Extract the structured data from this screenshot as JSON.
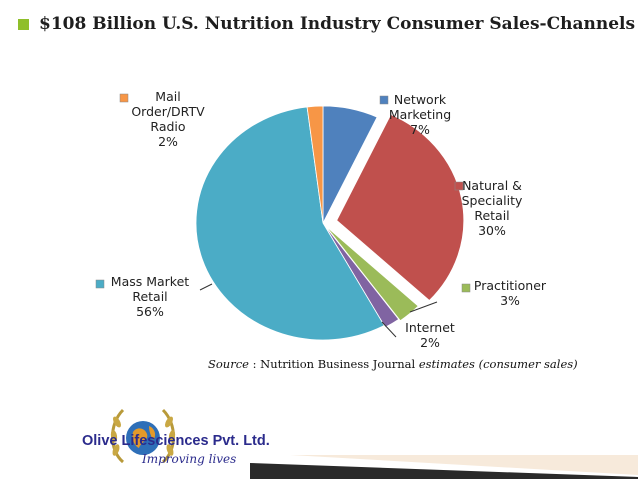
{
  "slide": {
    "title": "$108 Billion U.S. Nutrition Industry Consumer Sales-Channels",
    "source": {
      "prefix": "Source",
      "mid": " : Nutrition Business Journal ",
      "suffix": "estimates (consumer sales)"
    },
    "company": {
      "name": "Olive Lifesciences Pvt. Ltd.",
      "tagline": "Improving lives"
    },
    "colors": {
      "title_bullet": "#8fbf2a",
      "accent_corner": "#2a2a2a"
    }
  },
  "chart_data": {
    "type": "pie",
    "title": "",
    "slices": [
      {
        "label": "Network Marketing",
        "value": 7,
        "pct": "7%",
        "color": "#4f81bd",
        "label_lines": [
          "Network",
          "Marketing",
          "7%"
        ]
      },
      {
        "label": "Natural & Speciality Retail",
        "value": 30,
        "pct": "30%",
        "color": "#c0504d",
        "label_lines": [
          "Natural &",
          "Speciality",
          "Retail",
          "30%"
        ]
      },
      {
        "label": "Practitioner",
        "value": 3,
        "pct": "3%",
        "color": "#9bbb59",
        "label_lines": [
          "Practitioner",
          "3%"
        ]
      },
      {
        "label": "Internet",
        "value": 2,
        "pct": "2%",
        "color": "#8064a2",
        "label_lines": [
          "Internet",
          "2%"
        ]
      },
      {
        "label": "Mass Market Retail",
        "value": 56,
        "pct": "56%",
        "color": "#4bacc6",
        "label_lines": [
          "Mass Market",
          "Retail",
          "56%"
        ]
      },
      {
        "label": "Mail Order/DRTV Radio",
        "value": 2,
        "pct": "2%",
        "color": "#f79646",
        "label_lines": [
          "Mail",
          "Order/DRTV",
          "Radio",
          "2%"
        ]
      }
    ]
  }
}
